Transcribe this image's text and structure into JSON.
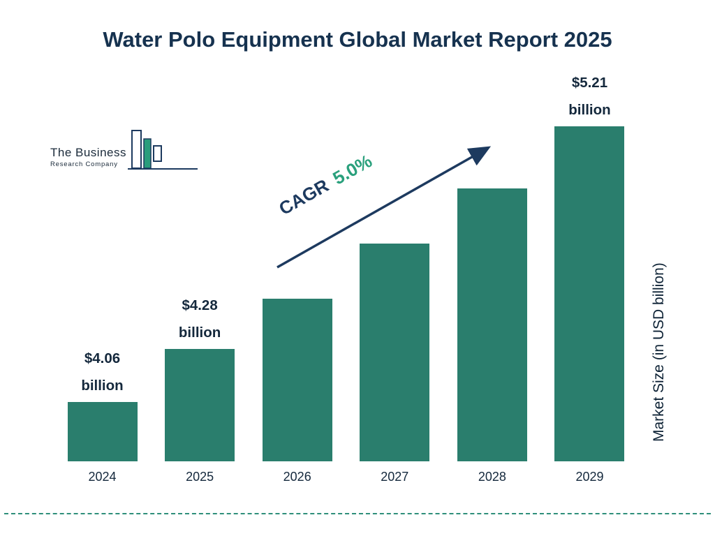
{
  "title": "Water Polo Equipment Global Market Report 2025",
  "logo": {
    "line1": "The Business",
    "line2": "Research Company"
  },
  "cagr": {
    "prefix": "CAGR",
    "value": "5.0%"
  },
  "chart_data": {
    "type": "bar",
    "title": "Water Polo Equipment Global Market Report 2025",
    "categories": [
      "2024",
      "2025",
      "2026",
      "2027",
      "2028",
      "2029"
    ],
    "values": [
      4.06,
      4.28,
      4.49,
      4.72,
      4.95,
      5.21
    ],
    "unit": "USD billion",
    "bar_labels": [
      "$4.06 billion",
      "$4.28 billion",
      null,
      null,
      null,
      "$5.21 billion"
    ],
    "cagr": "5.0%",
    "xlabel": "",
    "ylabel": "Market Size (in USD billion)",
    "legend": "none",
    "grid": "off",
    "colors": {
      "bar": "#2a7e6d",
      "title_text": "#16324f",
      "cagr_value": "#2aa07c",
      "arrow": "#1d3a5f",
      "divider": "#2e8f7a"
    }
  }
}
